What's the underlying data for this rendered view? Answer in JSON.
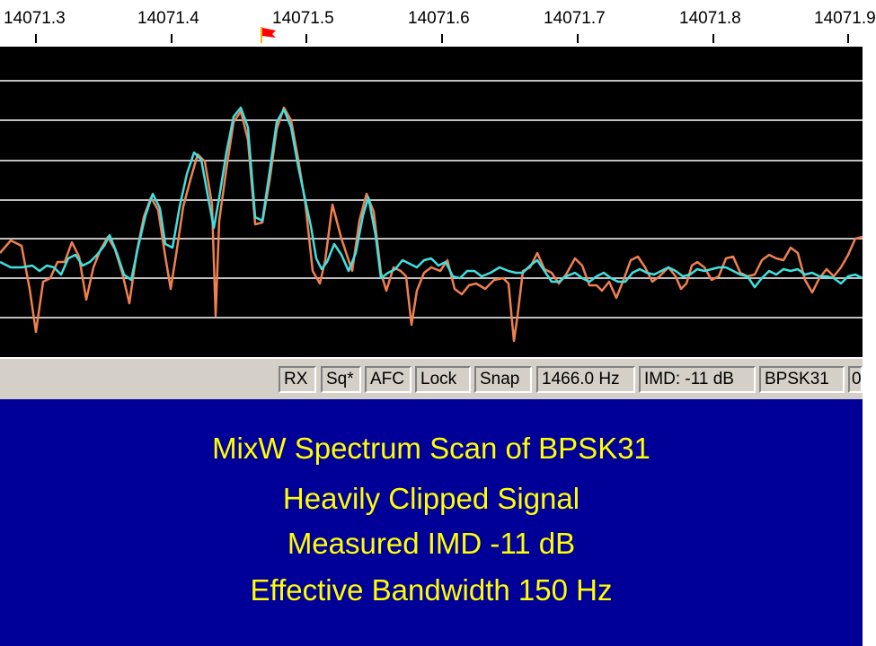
{
  "scale": {
    "labels": [
      "14071.3",
      "14071.4",
      "14071.5",
      "14071.6",
      "14071.7",
      "14071.8",
      "14071.9"
    ]
  },
  "status_bar": {
    "items": [
      "RX",
      "Sq*",
      "AFC",
      "Lock",
      "Snap",
      "1466.0 Hz",
      "IMD: -11 dB",
      "BPSK31",
      "0"
    ]
  },
  "caption": {
    "line1": "MixW Spectrum Scan of BPSK31",
    "line2": "Heavily Clipped Signal",
    "line3": "Measured IMD -11 dB",
    "line4": "Effective Bandwidth 150 Hz"
  },
  "colors": {
    "plot_background": "#000000",
    "grid_lines": "#c0c0c0",
    "trace_cyan": "#40e0e0",
    "trace_orange": "#f08050",
    "caption_background": "#000099",
    "caption_text": "#ffff00",
    "marker_flag": "#ff0000"
  },
  "icons": {
    "marker": "red-flag-and-diamond-marker-icon"
  }
}
